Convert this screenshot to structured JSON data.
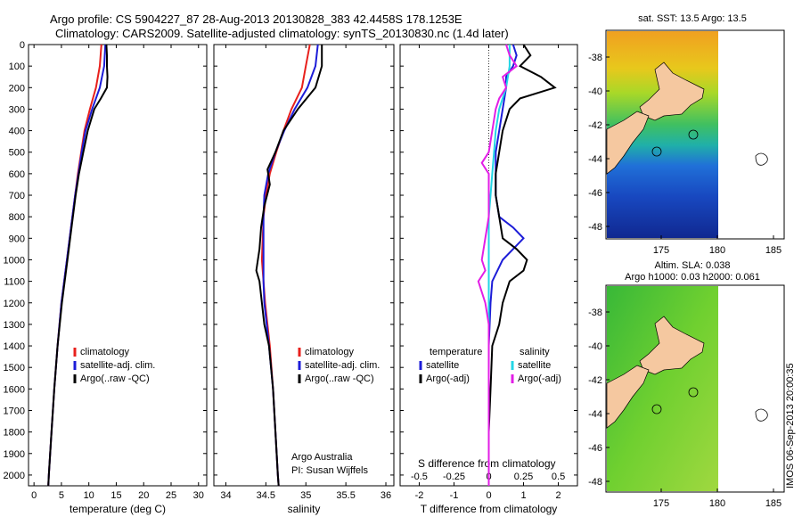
{
  "header": {
    "line1": "Argo profile: CS 5904227_87 28-Aug-2013 20130828_383 42.4458S 178.1253E",
    "line2": "Climatology: CARS2009. Satellite-adjusted climatology: synTS_20130830.nc (1.4d later)"
  },
  "colors": {
    "climatology": "#e8201c",
    "satellite": "#1c1cd8",
    "argo": "#000000",
    "satellite_s": "#22d6e6",
    "argo_s": "#e21ee6"
  },
  "chart_data": [
    {
      "type": "line",
      "id": "temperature",
      "xlabel": "temperature (deg C)",
      "xlim": [
        -1,
        31.5
      ],
      "xticks": [
        0,
        5,
        10,
        15,
        20,
        25,
        30
      ],
      "xtick_labels": [
        "0",
        "5",
        "10",
        "15",
        "20",
        "25",
        "30"
      ],
      "ylim": [
        2050,
        0
      ],
      "yticks": [
        0,
        100,
        200,
        300,
        400,
        500,
        600,
        700,
        800,
        900,
        1000,
        1100,
        1200,
        1300,
        1400,
        1500,
        1600,
        1700,
        1800,
        1900,
        2000
      ],
      "legend": [
        "climatology",
        "satellite-adj. clim.",
        "Argo(..raw -QC)"
      ],
      "series": [
        {
          "name": "climatology",
          "color": "#e8201c",
          "depth": [
            0,
            100,
            200,
            300,
            400,
            500,
            600,
            700,
            800,
            1000,
            1200,
            1400,
            1600,
            1800,
            2000,
            2050
          ],
          "values": [
            12.3,
            12.0,
            11.3,
            10.2,
            9.2,
            8.6,
            8.0,
            7.5,
            7.0,
            6.0,
            5.0,
            4.3,
            3.7,
            3.2,
            2.7,
            2.6
          ]
        },
        {
          "name": "satellite-adj. clim.",
          "color": "#1c1cd8",
          "depth": [
            0,
            100,
            200,
            300,
            400,
            500,
            600,
            700,
            800,
            1000,
            1200,
            1400,
            1600,
            1800,
            2000,
            2050
          ],
          "values": [
            13.0,
            12.8,
            12.0,
            10.6,
            9.4,
            8.7,
            8.1,
            7.5,
            7.0,
            6.0,
            5.0,
            4.3,
            3.7,
            3.2,
            2.7,
            2.6
          ]
        },
        {
          "name": "Argo(..raw -QC)",
          "color": "#000000",
          "depth": [
            0,
            50,
            100,
            150,
            200,
            250,
            300,
            400,
            500,
            600,
            700,
            800,
            1000,
            1200,
            1400,
            1600,
            1800,
            2000,
            2050
          ],
          "values": [
            13.2,
            13.3,
            13.3,
            13.4,
            13.3,
            12.2,
            11.0,
            9.8,
            9.0,
            8.2,
            7.6,
            7.1,
            6.1,
            5.1,
            4.3,
            3.7,
            3.2,
            2.7,
            2.6
          ]
        }
      ]
    },
    {
      "type": "line",
      "id": "salinity",
      "xlabel": "salinity",
      "xlim": [
        33.85,
        36.1
      ],
      "xticks": [
        34,
        34.5,
        35,
        35.5,
        36
      ],
      "xtick_labels": [
        "34",
        "34.5",
        "35",
        "35.5",
        "36"
      ],
      "ylim": [
        2050,
        0
      ],
      "legend": [
        "climatology",
        "satellite-adj. clim.",
        "Argo(..raw -QC)"
      ],
      "series": [
        {
          "name": "climatology",
          "color": "#e8201c",
          "depth": [
            0,
            100,
            200,
            300,
            400,
            500,
            600,
            700,
            800,
            900,
            1000,
            1100,
            1200,
            1400,
            1600,
            1800,
            2000,
            2050
          ],
          "values": [
            35.05,
            35.0,
            34.95,
            34.82,
            34.72,
            34.63,
            34.55,
            34.5,
            34.47,
            34.46,
            34.45,
            34.47,
            34.49,
            34.55,
            34.59,
            34.62,
            34.65,
            34.66
          ]
        },
        {
          "name": "satellite-adj. clim.",
          "color": "#1c1cd8",
          "depth": [
            0,
            100,
            200,
            300,
            400,
            500,
            600,
            700,
            800,
            900,
            1000,
            1100,
            1200,
            1400,
            1600,
            1800,
            2000,
            2050
          ],
          "values": [
            35.15,
            35.12,
            35.02,
            34.86,
            34.73,
            34.62,
            34.53,
            34.48,
            34.47,
            34.47,
            34.47,
            34.47,
            34.48,
            34.54,
            34.59,
            34.62,
            34.65,
            34.66
          ]
        },
        {
          "name": "Argo(..raw -QC)",
          "color": "#000000",
          "depth": [
            0,
            100,
            200,
            300,
            400,
            500,
            580,
            650,
            750,
            850,
            950,
            1050,
            1100,
            1200,
            1300,
            1400,
            1600,
            1800,
            2000,
            2050
          ],
          "values": [
            35.2,
            35.2,
            35.12,
            34.9,
            34.72,
            34.62,
            34.52,
            34.55,
            34.48,
            34.44,
            34.42,
            34.38,
            34.42,
            34.45,
            34.48,
            34.54,
            34.59,
            34.62,
            34.65,
            34.66
          ]
        }
      ]
    },
    {
      "type": "line",
      "id": "difference",
      "xlabel": "T difference from climatology",
      "xlabel_top": "S difference from climatology",
      "xlim": [
        -2.55,
        2.55
      ],
      "xticks": [
        -2,
        -1,
        0,
        1,
        2
      ],
      "xtick_labels": [
        "-2",
        "-1",
        "0",
        "1",
        "2"
      ],
      "s_xticks": [
        -0.5,
        -0.25,
        0,
        0.25,
        0.5
      ],
      "s_xtick_labels": [
        "-0.5",
        "-0.25",
        "0",
        "0.25",
        "0.5"
      ],
      "ylim": [
        2050,
        0
      ],
      "legend_left_title": "temperature",
      "legend_right_title": "salinity",
      "legend": [
        "satellite",
        "Argo(-adj)",
        "satellite",
        "Argo(-adj)"
      ],
      "series": [
        {
          "name": "satellite",
          "color": "#1c1cd8",
          "depth": [
            0,
            50,
            100,
            150,
            200,
            300,
            400,
            500,
            600,
            700,
            800,
            850,
            900,
            950,
            1000,
            1100,
            1200,
            1400,
            1600,
            1800,
            2000,
            2050
          ],
          "values": [
            0.7,
            0.8,
            0.7,
            0.5,
            0.5,
            0.4,
            0.3,
            0.2,
            0.2,
            0.2,
            0.3,
            0.7,
            1.0,
            0.7,
            0.4,
            0.1,
            0.05,
            0.0,
            0.0,
            0.0,
            0.0,
            0.0
          ]
        },
        {
          "name": "Argo(-adj)",
          "color": "#000000",
          "depth": [
            0,
            50,
            100,
            150,
            200,
            250,
            300,
            400,
            500,
            600,
            700,
            800,
            900,
            950,
            1000,
            1050,
            1100,
            1200,
            1300,
            1400,
            1600,
            1800,
            2000,
            2050
          ],
          "values": [
            1.0,
            1.2,
            0.9,
            1.5,
            1.9,
            0.9,
            0.6,
            0.4,
            0.3,
            0.2,
            0.2,
            0.3,
            0.4,
            0.8,
            1.1,
            1.0,
            0.6,
            0.4,
            0.3,
            0.1,
            0.05,
            0.0,
            0.0,
            0.0
          ]
        },
        {
          "name": "satellite",
          "color": "#22d6e6",
          "depth": [
            0,
            100,
            200,
            300,
            400,
            500,
            600,
            700,
            800,
            1000,
            1200,
            1400,
            1600,
            1800,
            2000,
            2050
          ],
          "values": [
            0.6,
            0.6,
            0.5,
            0.3,
            0.2,
            0.15,
            0.1,
            0.05,
            0.0,
            0.0,
            0.0,
            0.0,
            0.0,
            0.0,
            0.0,
            0.0
          ]
        },
        {
          "name": "Argo(-adj)",
          "color": "#e21ee6",
          "depth": [
            0,
            50,
            100,
            150,
            200,
            250,
            300,
            400,
            500,
            550,
            600,
            700,
            800,
            900,
            1000,
            1050,
            1100,
            1200,
            1300,
            1400,
            1600,
            1800,
            2000,
            2050
          ],
          "values": [
            0.5,
            0.6,
            0.8,
            0.4,
            0.5,
            0.3,
            0.2,
            0.1,
            0.0,
            -0.2,
            0.0,
            0.0,
            0.0,
            -0.1,
            -0.2,
            -0.1,
            -0.3,
            -0.1,
            0.0,
            0.0,
            0.0,
            0.0,
            0.0,
            0.0
          ]
        }
      ]
    }
  ],
  "annotation": {
    "line1": "Argo Australia",
    "line2": "PI: Susan Wijffels"
  },
  "maps": [
    {
      "title": "sat. SST: 13.5 Argo: 13.5",
      "yticks": [
        "-38",
        "-40",
        "-42",
        "-44",
        "-46",
        "-48"
      ],
      "xticks": [
        "175",
        "180",
        "185"
      ]
    },
    {
      "title": "Altim. SLA: 0.038",
      "subtitle": "Argo h1000: 0.03 h2000: 0.061",
      "yticks": [
        "-38",
        "-40",
        "-42",
        "-44",
        "-46",
        "-48"
      ],
      "xticks": [
        "175",
        "180",
        "185"
      ]
    }
  ],
  "credit": "IMOS 06-Sep-2013 20:00:35"
}
